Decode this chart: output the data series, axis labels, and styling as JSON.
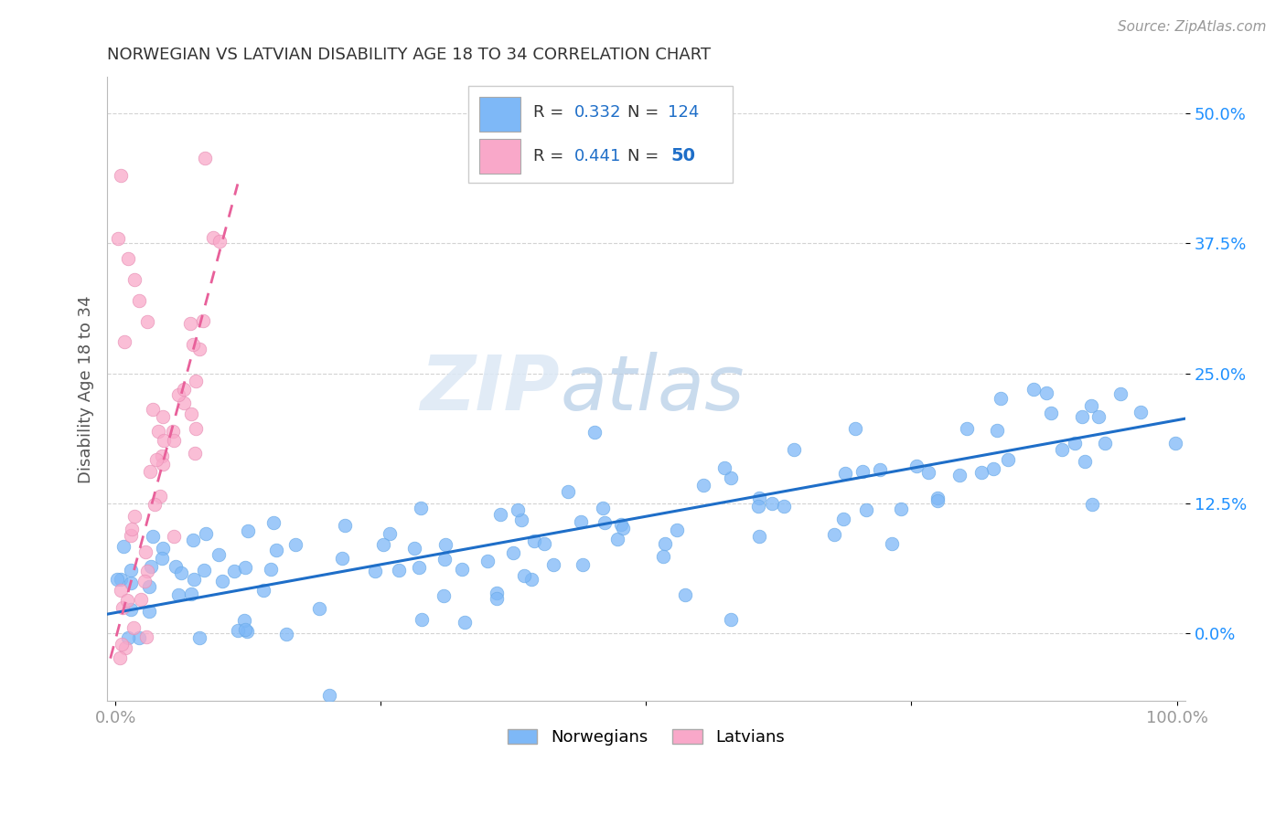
{
  "title": "NORWEGIAN VS LATVIAN DISABILITY AGE 18 TO 34 CORRELATION CHART",
  "source": "Source: ZipAtlas.com",
  "ylabel": "Disability Age 18 to 34",
  "xlim": [
    -0.008,
    1.008
  ],
  "ylim": [
    -0.065,
    0.535
  ],
  "xticks": [
    0.0,
    0.25,
    0.5,
    0.75,
    1.0
  ],
  "xticklabels": [
    "0.0%",
    "",
    "",
    "",
    "100.0%"
  ],
  "yticks": [
    0.0,
    0.125,
    0.25,
    0.375,
    0.5
  ],
  "yticklabels": [
    "0.0%",
    "12.5%",
    "25.0%",
    "37.5%",
    "50.0%"
  ],
  "norwegian_color": "#7EB8F7",
  "norwegian_edge_color": "#6aaae8",
  "latvian_color": "#F9A8C9",
  "latvian_edge_color": "#e890b5",
  "norwegian_line_color": "#1E6EC8",
  "latvian_line_color": "#E8609A",
  "r_norwegian": "0.332",
  "n_norwegian": "124",
  "r_latvian": "0.441",
  "n_latvian": "50",
  "watermark_zip": "ZIP",
  "watermark_atlas": "atlas",
  "background_color": "#ffffff",
  "grid_color": "#c8c8c8",
  "title_color": "#333333",
  "axis_label_color": "#555555",
  "tick_label_color": "#999999",
  "right_tick_color": "#1E90FF",
  "legend_r_color": "#1E6EC8",
  "nor_line_intercept": 0.02,
  "nor_line_slope": 0.185,
  "lat_line_intercept": -0.005,
  "lat_line_slope": 3.8
}
